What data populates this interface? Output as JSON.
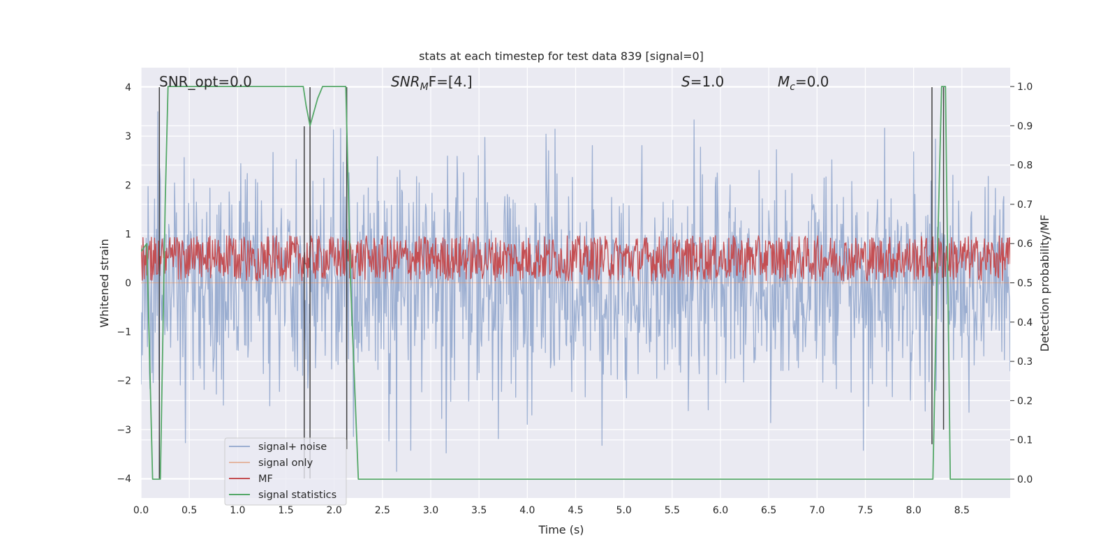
{
  "chart_data": {
    "type": "line",
    "title": "stats at each timestep for test data 839 [signal=0]",
    "xlabel": "Time (s)",
    "ylabel": "Whitened strain",
    "y2label": "Detection probability/MF",
    "xlim": [
      0.0,
      9.0
    ],
    "ylim": [
      -4.4,
      4.4
    ],
    "y2lim": [
      -0.048,
      1.048
    ],
    "xticks": [
      0.0,
      0.5,
      1.0,
      1.5,
      2.0,
      2.5,
      3.0,
      3.5,
      4.0,
      4.5,
      5.0,
      5.5,
      6.0,
      6.5,
      7.0,
      7.5,
      8.0,
      8.5
    ],
    "xtick_labels": [
      "0.0",
      "0.5",
      "1.0",
      "1.5",
      "2.0",
      "2.5",
      "3.0",
      "3.5",
      "4.0",
      "4.5",
      "5.0",
      "5.5",
      "6.0",
      "6.5",
      "7.0",
      "7.5",
      "8.0",
      "8.5"
    ],
    "yticks": [
      4,
      3,
      2,
      1,
      0,
      -1,
      -2,
      -3,
      -4
    ],
    "ytick_labels": [
      "4",
      "3",
      "2",
      "1",
      "0",
      "−1",
      "−2",
      "−3",
      "−4"
    ],
    "y2ticks": [
      1.0,
      0.9,
      0.8,
      0.7,
      0.6,
      0.5,
      0.4,
      0.3,
      0.2,
      0.1,
      0.0
    ],
    "y2tick_labels": [
      "1.0",
      "0.9",
      "0.8",
      "0.7",
      "0.6",
      "0.5",
      "0.4",
      "0.3",
      "0.2",
      "0.1",
      "0.0"
    ],
    "grid": true,
    "legend_position": "lower-left",
    "annotations": {
      "snr_opt": "SNR_opt=0.0",
      "snr_mf_prefix": "SNR",
      "snr_mf_sub": "M",
      "snr_mf_suffix": "F=[4.]",
      "s_symbol": "S",
      "s_value": "=1.0",
      "mc_symbol": "M",
      "mc_sub": "c",
      "mc_value": "=0.0"
    },
    "series": [
      {
        "name": "signal+ noise",
        "color": "#4c72b0",
        "opacity": 0.5,
        "axis": "left",
        "kind": "noise",
        "sample_rate": 150,
        "std": 1.15
      },
      {
        "name": "signal only",
        "color": "#dd8452",
        "opacity": 0.5,
        "axis": "left",
        "kind": "flat",
        "value": 0.0
      },
      {
        "name": "MF",
        "color": "#c44e52",
        "opacity": 1.0,
        "axis": "right",
        "kind": "band",
        "sample_rate": 150,
        "low": 0.505,
        "high": 0.62
      },
      {
        "name": "signal statistics",
        "color": "#55a868",
        "opacity": 1.0,
        "axis": "right",
        "kind": "line",
        "x": [
          0.0,
          0.06,
          0.12,
          0.2,
          0.25,
          0.28,
          0.3,
          1.68,
          1.71,
          1.75,
          1.83,
          1.88,
          2.12,
          2.17,
          2.25,
          8.2,
          8.24,
          8.29,
          8.33,
          8.38,
          9.0
        ],
        "y": [
          0.58,
          0.6,
          0.0,
          0.0,
          0.7,
          1.0,
          1.0,
          1.0,
          0.95,
          0.9,
          0.97,
          1.0,
          1.0,
          0.5,
          0.0,
          0.0,
          0.5,
          1.0,
          1.0,
          0.0,
          0.0
        ]
      }
    ],
    "vlines": {
      "color": "#3f3f3f",
      "x": [
        0.19,
        1.69,
        1.75,
        2.13,
        8.19,
        8.31
      ],
      "ymin": [
        -4.0,
        -4.0,
        -4.0,
        -3.4,
        -3.3,
        -3.0
      ],
      "ymax": [
        4.0,
        3.2,
        4.0,
        4.0,
        4.0,
        4.0
      ]
    }
  }
}
